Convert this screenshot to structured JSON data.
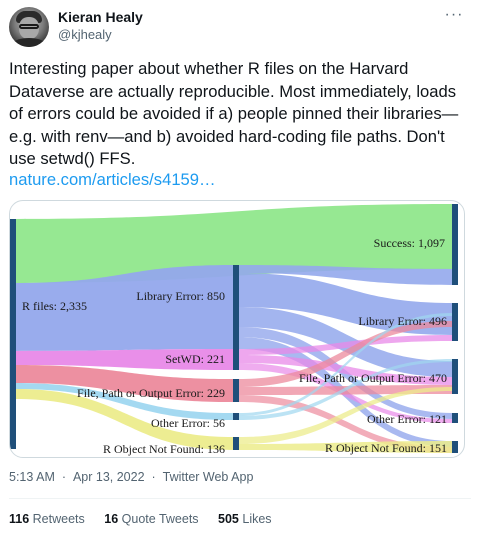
{
  "author": {
    "name": "Kieran Healy",
    "handle": "@kjhealy"
  },
  "tweet": {
    "text": "Interesting paper about whether R files on the Harvard Dataverse are actually reproducible. Most immediately, loads of errors could be avoided if a) people pinned their libraries—e.g. with renv—and b) avoided hard-coding file paths. Don't use setwd() FFS.",
    "link": "nature.com/articles/s4159…"
  },
  "chart_data": {
    "type": "sankey",
    "nodes": [
      {
        "id": "rfiles",
        "label": "R files: 2,335",
        "value": 2335
      },
      {
        "id": "lib1",
        "label": "Library Error: 850",
        "value": 850
      },
      {
        "id": "setwd",
        "label": "SetWD: 221",
        "value": 221
      },
      {
        "id": "path1",
        "label": "File, Path or Output Error: 229",
        "value": 229
      },
      {
        "id": "other1",
        "label": "Other Error: 56",
        "value": 56
      },
      {
        "id": "robj1",
        "label": "R Object Not Found: 136",
        "value": 136
      },
      {
        "id": "success",
        "label": "Success: 1,097",
        "value": 1097
      },
      {
        "id": "lib2",
        "label": "Library Error: 496",
        "value": 496
      },
      {
        "id": "path2",
        "label": "File, Path or Output Error: 470",
        "value": 470
      },
      {
        "id": "other2",
        "label": "Other Error: 121",
        "value": 121
      },
      {
        "id": "robj2",
        "label": "R Object Not Found: 151",
        "value": 151
      }
    ],
    "colors": {
      "success": "#90e78c",
      "library": "#93a8ec",
      "setwd": "#e889e8",
      "path": "#ec8a9c",
      "other": "#9fd7f0",
      "robj": "#ecec8c",
      "node": "#1f4f7a"
    }
  },
  "footer": {
    "time": "5:13 AM",
    "date": "Apr 13, 2022",
    "source": "Twitter Web App",
    "retweets_count": "116",
    "retweets_label": "Retweets",
    "quotes_count": "16",
    "quotes_label": "Quote Tweets",
    "likes_count": "505",
    "likes_label": "Likes"
  }
}
